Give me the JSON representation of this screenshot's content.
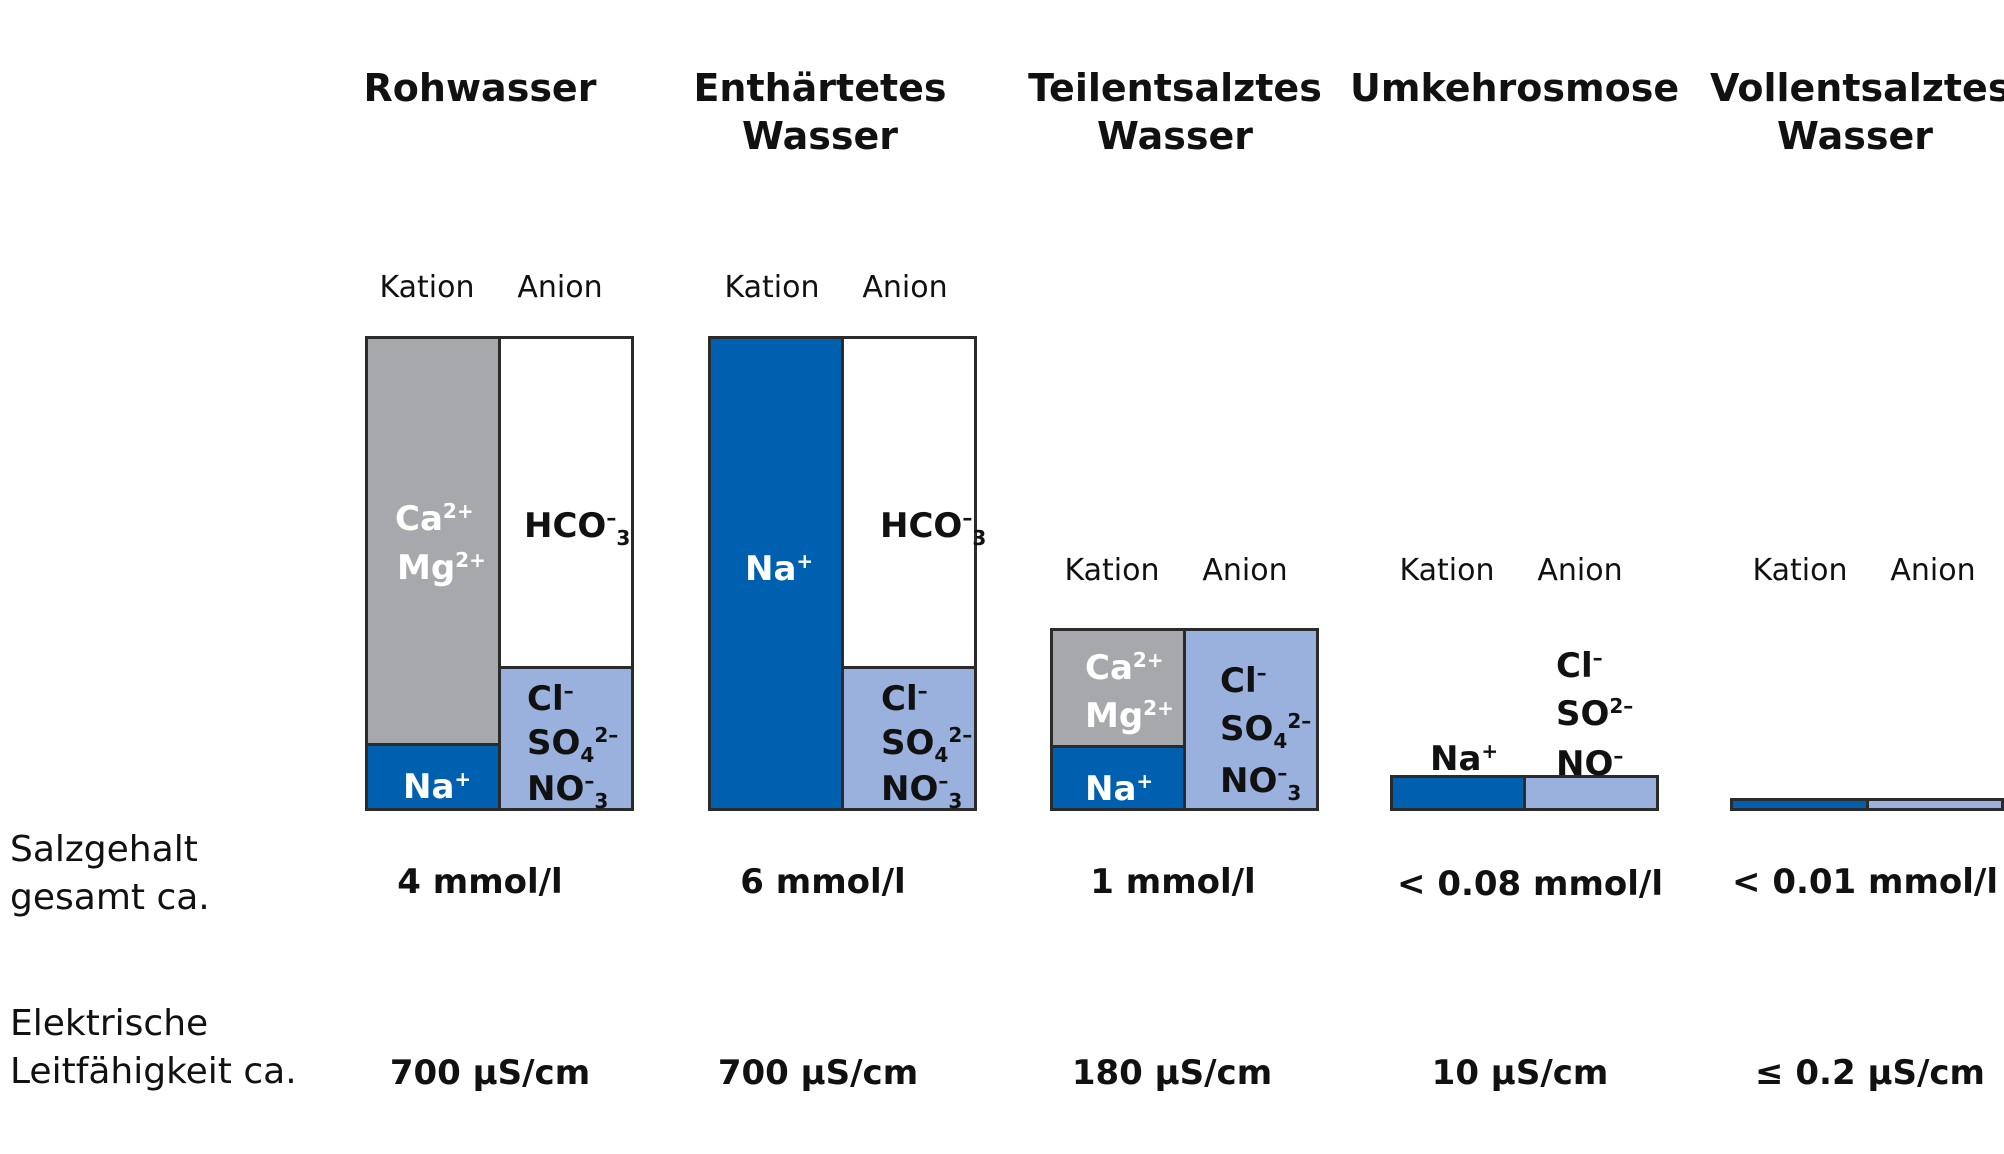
{
  "colors": {
    "grey": "#a7a8ab",
    "blue": "#0060b0",
    "lightblue": "#99b1dc",
    "white": "#ffffff",
    "border": "#2b2b2b"
  },
  "labels": {
    "kation": "Kation",
    "anion": "Anion"
  },
  "rows": {
    "salzgehalt_1": "Salzgehalt",
    "salzgehalt_2": "gesamt ca.",
    "leit_1": "Elektrische",
    "leit_2": "Leitfähigkeit ca."
  },
  "ions": {
    "ca": "Ca",
    "ca_sup": "2+",
    "mg": "Mg",
    "mg_sup": "2+",
    "na": "Na",
    "na_sup": "+",
    "hco": "HCO",
    "hco_sup": "–",
    "hco_sub": "3",
    "cl": "Cl",
    "cl_sup": "–",
    "so": "SO",
    "so_sup": "2–",
    "so_sub": "4",
    "no": "NO",
    "no_sup": "–",
    "no_sub": "3"
  },
  "columns": [
    {
      "title_1": "Rohwasser",
      "title_2": "",
      "salt": "4 mmol/l",
      "conductivity": "700 µS/cm"
    },
    {
      "title_1": "Enthärtetes",
      "title_2": "Wasser",
      "salt": "6 mmol/l",
      "conductivity": "700 µS/cm"
    },
    {
      "title_1": "Teilentsalztes",
      "title_2": "Wasser",
      "salt": "1 mmol/l",
      "conductivity": "180 µS/cm"
    },
    {
      "title_1": "Umkehrosmose",
      "title_2": "",
      "salt": "< 0.08 mmol/l",
      "conductivity": "10 µS/cm"
    },
    {
      "title_1": "Vollentsalztes",
      "title_2": "Wasser",
      "salt": "< 0.01 mmol/l",
      "conductivity": "≤ 0.2 µS/cm"
    }
  ]
}
